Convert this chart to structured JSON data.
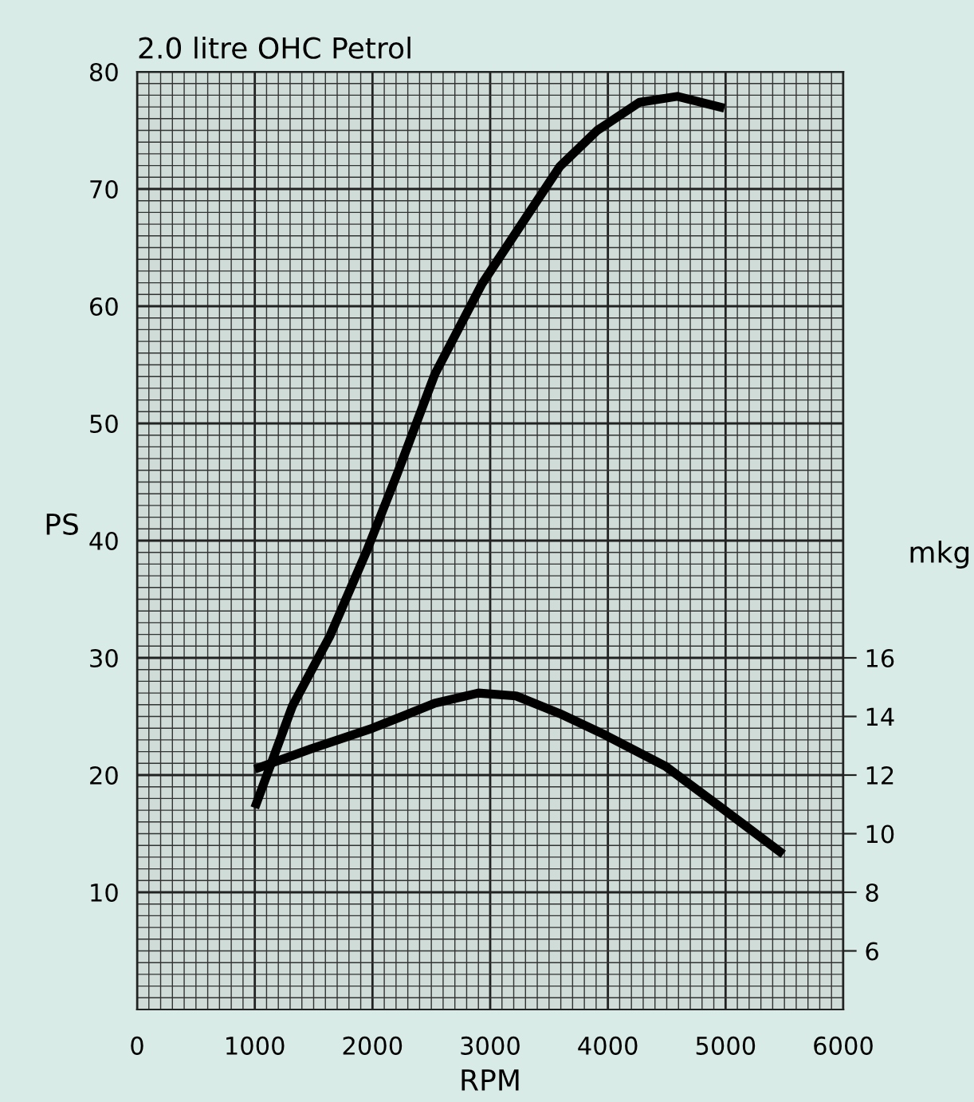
{
  "chart_data": {
    "type": "line",
    "title": "2.0 litre OHC Petrol",
    "xlabel": "RPM",
    "ylabel": "PS",
    "y2label": "mkg",
    "xlim": [
      0,
      6000
    ],
    "xticks": [
      0,
      1000,
      2000,
      3000,
      4000,
      5000,
      6000
    ],
    "ylim": [
      0,
      80
    ],
    "yticks": [
      10,
      20,
      30,
      40,
      50,
      60,
      70,
      80
    ],
    "y2lim": [
      4,
      36
    ],
    "y2ticks": [
      6,
      8,
      10,
      12,
      14,
      16
    ],
    "grid": true,
    "legend": false,
    "marker": "none",
    "line_style": "solid",
    "series": [
      {
        "color": "#000000",
        "x": [
          1000,
          1320,
          1640,
          1950,
          2210,
          2530,
          2930,
          3220,
          3590,
          3910,
          4270,
          4590,
          4990
        ],
        "values": [
          17.2,
          25.9,
          31.9,
          39.1,
          45.7,
          54.2,
          61.9,
          66.3,
          71.9,
          75.0,
          77.4,
          77.9,
          76.9
        ]
      },
      {
        "color": "#000000",
        "axis": "y2",
        "x": [
          1000,
          1480,
          2000,
          2530,
          2900,
          3220,
          3590,
          3960,
          4490,
          4960,
          5490
        ],
        "values": [
          12.2,
          12.9,
          13.6,
          14.45,
          14.8,
          14.7,
          14.1,
          13.4,
          12.3,
          10.9,
          9.3
        ]
      }
    ]
  }
}
